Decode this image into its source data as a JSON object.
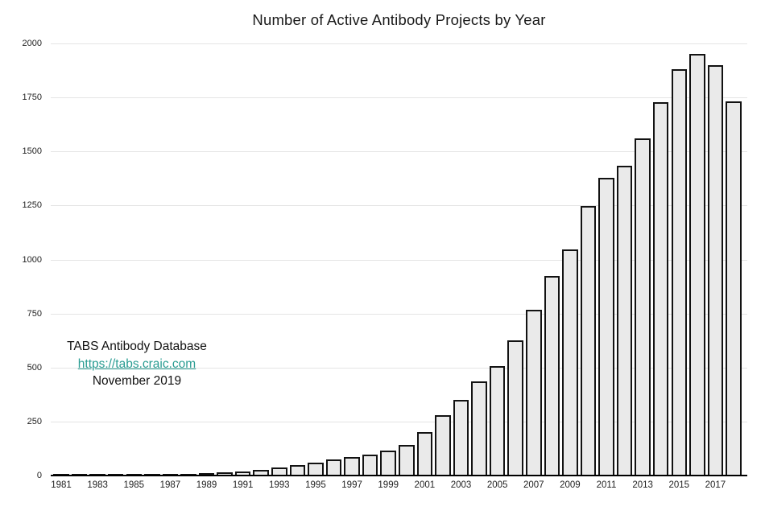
{
  "title": "Number of Active Antibody Projects by Year",
  "annotation": {
    "line1": "TABS Antibody Database",
    "link": "https://tabs.craic.com",
    "line3": "November 2019"
  },
  "colors": {
    "bar_fill": "#eaeaea",
    "bar_border": "#121212",
    "grid": "#e4e4e4",
    "axis": "#000000",
    "link": "#2a9d93",
    "text": "#1a1a1a"
  },
  "chart_data": {
    "type": "bar",
    "title": "Number of Active Antibody Projects by Year",
    "xlabel": "",
    "ylabel": "",
    "categories": [
      1981,
      1982,
      1983,
      1984,
      1985,
      1986,
      1987,
      1988,
      1989,
      1990,
      1991,
      1992,
      1993,
      1994,
      1995,
      1996,
      1997,
      1998,
      1999,
      2000,
      2001,
      2002,
      2003,
      2004,
      2005,
      2006,
      2007,
      2008,
      2009,
      2010,
      2011,
      2012,
      2013,
      2014,
      2015,
      2016,
      2017,
      2018
    ],
    "values": [
      1,
      1,
      2,
      2,
      3,
      4,
      6,
      8,
      12,
      15,
      20,
      26,
      38,
      48,
      60,
      75,
      86,
      97,
      116,
      140,
      200,
      278,
      350,
      436,
      505,
      627,
      766,
      922,
      1048,
      1248,
      1377,
      1433,
      1560,
      1727,
      1880,
      1950,
      1900,
      1732
    ],
    "ylim": [
      0,
      2000
    ],
    "yticks": [
      0,
      250,
      500,
      750,
      1000,
      1250,
      1500,
      1750,
      2000
    ],
    "xtick_labels": [
      "1981",
      "1983",
      "1985",
      "1987",
      "1989",
      "1991",
      "1993",
      "1995",
      "1997",
      "1999",
      "2001",
      "2003",
      "2005",
      "2007",
      "2009",
      "2011",
      "2013",
      "2015",
      "2017"
    ],
    "grid": "horizontal",
    "legend": "none",
    "annotations": [
      "TABS Antibody Database",
      "https://tabs.craic.com",
      "November 2019"
    ]
  }
}
